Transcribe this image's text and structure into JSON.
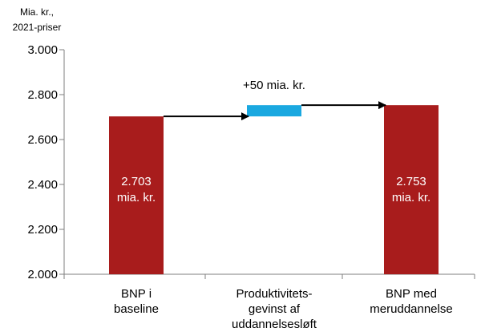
{
  "chart_data": {
    "type": "bar",
    "unit_label_lines": [
      "Mia. kr.,",
      "2021-priser"
    ],
    "ylim": [
      2000,
      3000
    ],
    "yticks": [
      {
        "value": 2000,
        "label": "2.000"
      },
      {
        "value": 2200,
        "label": "2.200"
      },
      {
        "value": 2400,
        "label": "2.400"
      },
      {
        "value": 2600,
        "label": "2.600"
      },
      {
        "value": 2800,
        "label": "2.800"
      },
      {
        "value": 3000,
        "label": "3.000"
      }
    ],
    "bars": [
      {
        "category_lines": [
          "BNP i",
          "baseline"
        ],
        "base": 2000,
        "value": 2703,
        "color": "#a81c1c",
        "label_lines": [
          "2.703",
          "mia. kr."
        ]
      },
      {
        "category_lines": [
          "Produktivitets-",
          "gevinst af",
          "uddannelsesløft"
        ],
        "base": 2703,
        "value": 2753,
        "color": "#1aa8e0",
        "label_lines": []
      },
      {
        "category_lines": [
          "BNP med",
          "meruddannelse"
        ],
        "base": 2000,
        "value": 2753,
        "color": "#a81c1c",
        "label_lines": [
          "2.753",
          "mia. kr."
        ]
      }
    ],
    "annotation": "+50 mia. kr.",
    "grid": false
  }
}
